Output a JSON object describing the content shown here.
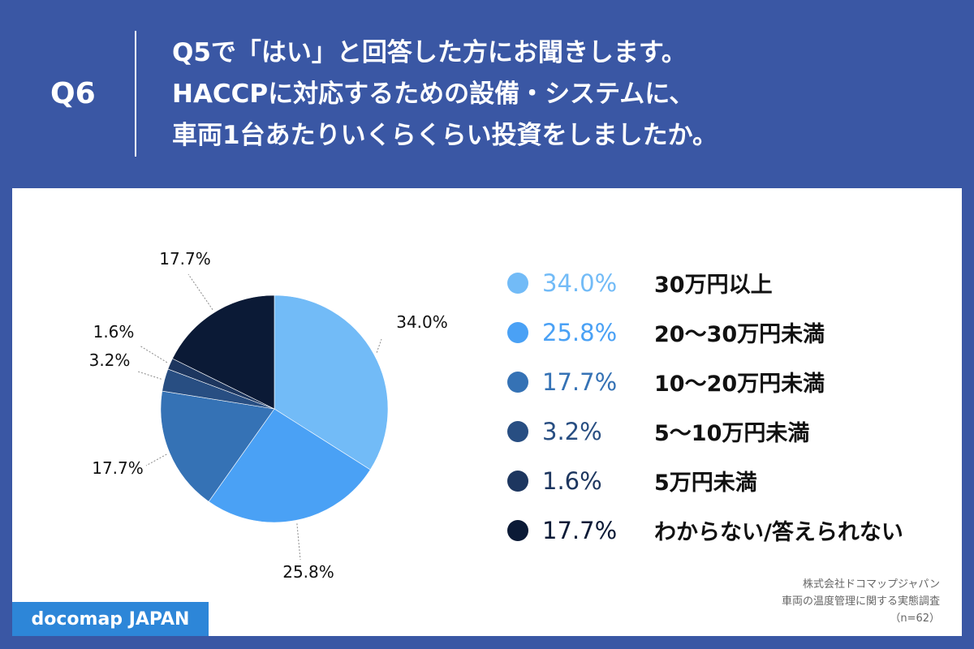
{
  "header": {
    "question_number": "Q6",
    "question_lines": [
      "Q5で「はい」と回答した方にお聞きします。",
      "HACCPに対応するための設備・システムに、",
      "車両1台あたりいくらくらい投資をしましたか。"
    ]
  },
  "chart_data": {
    "type": "pie",
    "title": "",
    "slices": [
      {
        "label": "30万円以上",
        "value": 34.0,
        "display": "34.0%",
        "color": "#72bbf7"
      },
      {
        "label": "20～30万円未満",
        "value": 25.8,
        "display": "25.8%",
        "color": "#4aa1f5"
      },
      {
        "label": "10～20万円未満",
        "value": 17.7,
        "display": "17.7%",
        "color": "#3572b5"
      },
      {
        "label": "5～10万円未満",
        "value": 3.2,
        "display": "3.2%",
        "color": "#284e82"
      },
      {
        "label": "5万円未満",
        "value": 1.6,
        "display": "1.6%",
        "color": "#1d365f"
      },
      {
        "label": "わからない/答えられない",
        "value": 17.7,
        "display": "17.7%",
        "color": "#0b1a36"
      }
    ],
    "legend_position": "right"
  },
  "footer": {
    "brand": "docomap JAPAN",
    "source_lines": [
      "株式会社ドコマップジャパン",
      "車両の温度管理に関する実態調査",
      "（n=62）"
    ]
  }
}
